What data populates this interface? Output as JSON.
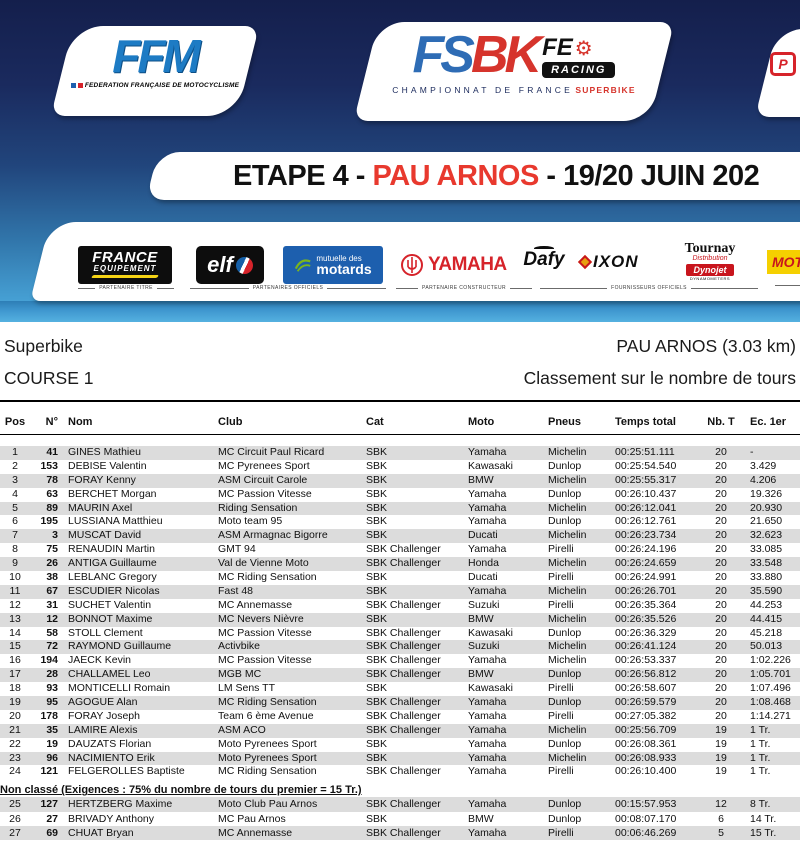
{
  "header": {
    "ffm": {
      "title": "FFM",
      "subtitle": "FEDERATION FRANÇAISE DE MOTOCYCLISME"
    },
    "fsbk": {
      "fs": "FS",
      "bk": "BK",
      "fe": "FE",
      "racing": "RACING",
      "championnat": "CHAMPIONNAT DE FRANCE",
      "superbike": "SUPERBIKE"
    },
    "banner": {
      "etape": "ETAPE 4 - ",
      "location": "PAU ARNOS",
      "date": " - 19/20 JUIN 202"
    }
  },
  "sponsors": {
    "france_equipement": {
      "line1": "FRANCE",
      "line2": "EQUIPEMENT"
    },
    "elf": {
      "name": "elf"
    },
    "mutuelle": {
      "line1": "mutuelle des",
      "line2": "motards"
    },
    "yamaha": {
      "name": "YAMAHA"
    },
    "dafy": {
      "name": "Dafy"
    },
    "ixon": {
      "name": "IXON"
    },
    "tournay": {
      "line1": "Tournay",
      "line2": "Distribution",
      "line3": "Dynojet",
      "line4": "DYNAMOMETERS"
    },
    "moto_station": {
      "name": "MOTO S"
    },
    "captions": {
      "titre": "PARTENAIRE TITRE",
      "officiels": "PARTENAIRES OFFICIELS",
      "constructeur": "PARTENAIRE CONSTRUCTEUR",
      "fournisseurs": "FOURNISSEURS OFFICIELS"
    }
  },
  "info": {
    "category": "Superbike",
    "race": "COURSE 1",
    "circuit": "PAU ARNOS (3.03 km)",
    "classification": "Classement sur le nombre de tours"
  },
  "table": {
    "headers": {
      "pos": "Pos",
      "num": "N°",
      "nom": "Nom",
      "club": "Club",
      "cat": "Cat",
      "moto": "Moto",
      "pneus": "Pneus",
      "temps": "Temps total",
      "nbt": "Nb. T",
      "ec": "Ec. 1er"
    },
    "rows": [
      {
        "pos": 1,
        "num": "41",
        "name": "GINES Mathieu",
        "club": "MC Circuit Paul Ricard",
        "cat": "SBK",
        "moto": "Yamaha",
        "tyres": "Michelin",
        "time": "00:25:51.111",
        "laps": "20",
        "gap": "-"
      },
      {
        "pos": 2,
        "num": "153",
        "name": "DEBISE Valentin",
        "club": "MC Pyrenees Sport",
        "cat": "SBK",
        "moto": "Kawasaki",
        "tyres": "Dunlop",
        "time": "00:25:54.540",
        "laps": "20",
        "gap": "3.429"
      },
      {
        "pos": 3,
        "num": "78",
        "name": "FORAY Kenny",
        "club": "ASM Circuit Carole",
        "cat": "SBK",
        "moto": "BMW",
        "tyres": "Michelin",
        "time": "00:25:55.317",
        "laps": "20",
        "gap": "4.206"
      },
      {
        "pos": 4,
        "num": "63",
        "name": "BERCHET Morgan",
        "club": "MC Passion Vitesse",
        "cat": "SBK",
        "moto": "Yamaha",
        "tyres": "Dunlop",
        "time": "00:26:10.437",
        "laps": "20",
        "gap": "19.326"
      },
      {
        "pos": 5,
        "num": "89",
        "name": "MAURIN Axel",
        "club": "Riding Sensation",
        "cat": "SBK",
        "moto": "Yamaha",
        "tyres": "Michelin",
        "time": "00:26:12.041",
        "laps": "20",
        "gap": "20.930"
      },
      {
        "pos": 6,
        "num": "195",
        "name": "LUSSIANA Matthieu",
        "club": "Moto team 95",
        "cat": "SBK",
        "moto": "Yamaha",
        "tyres": "Dunlop",
        "time": "00:26:12.761",
        "laps": "20",
        "gap": "21.650"
      },
      {
        "pos": 7,
        "num": "3",
        "name": "MUSCAT David",
        "club": "ASM Armagnac Bigorre",
        "cat": "SBK",
        "moto": "Ducati",
        "tyres": "Michelin",
        "time": "00:26:23.734",
        "laps": "20",
        "gap": "32.623"
      },
      {
        "pos": 8,
        "num": "75",
        "name": "RENAUDIN Martin",
        "club": "GMT 94",
        "cat": "SBK Challenger",
        "moto": "Yamaha",
        "tyres": "Pirelli",
        "time": "00:26:24.196",
        "laps": "20",
        "gap": "33.085"
      },
      {
        "pos": 9,
        "num": "26",
        "name": "ANTIGA Guillaume",
        "club": "Val de Vienne Moto",
        "cat": "SBK Challenger",
        "moto": "Honda",
        "tyres": "Michelin",
        "time": "00:26:24.659",
        "laps": "20",
        "gap": "33.548"
      },
      {
        "pos": 10,
        "num": "38",
        "name": "LEBLANC Gregory",
        "club": "MC Riding Sensation",
        "cat": "SBK",
        "moto": "Ducati",
        "tyres": "Pirelli",
        "time": "00:26:24.991",
        "laps": "20",
        "gap": "33.880"
      },
      {
        "pos": 11,
        "num": "67",
        "name": "ESCUDIER Nicolas",
        "club": "Fast 48",
        "cat": "SBK",
        "moto": "Yamaha",
        "tyres": "Michelin",
        "time": "00:26:26.701",
        "laps": "20",
        "gap": "35.590"
      },
      {
        "pos": 12,
        "num": "31",
        "name": "SUCHET Valentin",
        "club": "MC Annemasse",
        "cat": "SBK Challenger",
        "moto": "Suzuki",
        "tyres": "Pirelli",
        "time": "00:26:35.364",
        "laps": "20",
        "gap": "44.253"
      },
      {
        "pos": 13,
        "num": "12",
        "name": "BONNOT Maxime",
        "club": "MC Nevers Nièvre",
        "cat": "SBK",
        "moto": "BMW",
        "tyres": "Michelin",
        "time": "00:26:35.526",
        "laps": "20",
        "gap": "44.415"
      },
      {
        "pos": 14,
        "num": "58",
        "name": "STOLL Clement",
        "club": "MC Passion Vitesse",
        "cat": "SBK Challenger",
        "moto": "Kawasaki",
        "tyres": "Dunlop",
        "time": "00:26:36.329",
        "laps": "20",
        "gap": "45.218"
      },
      {
        "pos": 15,
        "num": "72",
        "name": "RAYMOND Guillaume",
        "club": "Activbike",
        "cat": "SBK Challenger",
        "moto": "Suzuki",
        "tyres": "Michelin",
        "time": "00:26:41.124",
        "laps": "20",
        "gap": "50.013"
      },
      {
        "pos": 16,
        "num": "194",
        "name": "JAECK Kevin",
        "club": "MC Passion Vitesse",
        "cat": "SBK Challenger",
        "moto": "Yamaha",
        "tyres": "Michelin",
        "time": "00:26:53.337",
        "laps": "20",
        "gap": "1:02.226"
      },
      {
        "pos": 17,
        "num": "28",
        "name": "CHALLAMEL Leo",
        "club": "MGB MC",
        "cat": "SBK Challenger",
        "moto": "BMW",
        "tyres": "Dunlop",
        "time": "00:26:56.812",
        "laps": "20",
        "gap": "1:05.701"
      },
      {
        "pos": 18,
        "num": "93",
        "name": "MONTICELLI Romain",
        "club": "LM Sens TT",
        "cat": "SBK",
        "moto": "Kawasaki",
        "tyres": "Pirelli",
        "time": "00:26:58.607",
        "laps": "20",
        "gap": "1:07.496"
      },
      {
        "pos": 19,
        "num": "95",
        "name": "AGOGUE Alan",
        "club": "MC Riding Sensation",
        "cat": "SBK Challenger",
        "moto": "Yamaha",
        "tyres": "Dunlop",
        "time": "00:26:59.579",
        "laps": "20",
        "gap": "1:08.468"
      },
      {
        "pos": 20,
        "num": "178",
        "name": "FORAY Joseph",
        "club": "Team 6 ème Avenue",
        "cat": "SBK Challenger",
        "moto": "Yamaha",
        "tyres": "Pirelli",
        "time": "00:27:05.382",
        "laps": "20",
        "gap": "1:14.271"
      },
      {
        "pos": 21,
        "num": "35",
        "name": "LAMIRE Alexis",
        "club": "ASM ACO",
        "cat": "SBK Challenger",
        "moto": "Yamaha",
        "tyres": "Michelin",
        "time": "00:25:56.709",
        "laps": "19",
        "gap": "1 Tr."
      },
      {
        "pos": 22,
        "num": "19",
        "name": "DAUZATS Florian",
        "club": "Moto Pyrenees Sport",
        "cat": "SBK",
        "moto": "Yamaha",
        "tyres": "Dunlop",
        "time": "00:26:08.361",
        "laps": "19",
        "gap": "1 Tr."
      },
      {
        "pos": 23,
        "num": "96",
        "name": "NACIMIENTO Erik",
        "club": "Moto Pyrenees Sport",
        "cat": "SBK",
        "moto": "Yamaha",
        "tyres": "Michelin",
        "time": "00:26:08.933",
        "laps": "19",
        "gap": "1 Tr."
      },
      {
        "pos": 24,
        "num": "121",
        "name": "FELGEROLLES Baptiste",
        "club": "MC Riding Sensation",
        "cat": "SBK Challenger",
        "moto": "Yamaha",
        "tyres": "Pirelli",
        "time": "00:26:10.400",
        "laps": "19",
        "gap": "1 Tr."
      }
    ],
    "non_classe_label": "Non classé (Exigences : 75% du nombre de tours du premier = 15 Tr.)",
    "unclassified_rows": [
      {
        "pos": 25,
        "num": "127",
        "name": "HERTZBERG Maxime",
        "club": "Moto Club Pau Arnos",
        "cat": "SBK Challenger",
        "moto": "Yamaha",
        "tyres": "Dunlop",
        "time": "00:15:57.953",
        "laps": "12",
        "gap": "8 Tr."
      },
      {
        "pos": 26,
        "num": "27",
        "name": "BRIVADY Anthony",
        "club": "MC Pau Arnos",
        "cat": "SBK",
        "moto": "BMW",
        "tyres": "Dunlop",
        "time": "00:08:07.170",
        "laps": "6",
        "gap": "14 Tr."
      },
      {
        "pos": 27,
        "num": "69",
        "name": "CHUAT Bryan",
        "club": "MC Annemasse",
        "cat": "SBK Challenger",
        "moto": "Yamaha",
        "tyres": "Pirelli",
        "time": "00:06:46.269",
        "laps": "5",
        "gap": "15 Tr."
      }
    ]
  },
  "colors": {
    "navy": "#1a2a5e",
    "light_blue": "#47a8da",
    "accent_red": "#e8392e",
    "logo_red": "#d6342c",
    "logo_blue": "#2e6cb5",
    "row_gray": "#dcdcdc"
  }
}
